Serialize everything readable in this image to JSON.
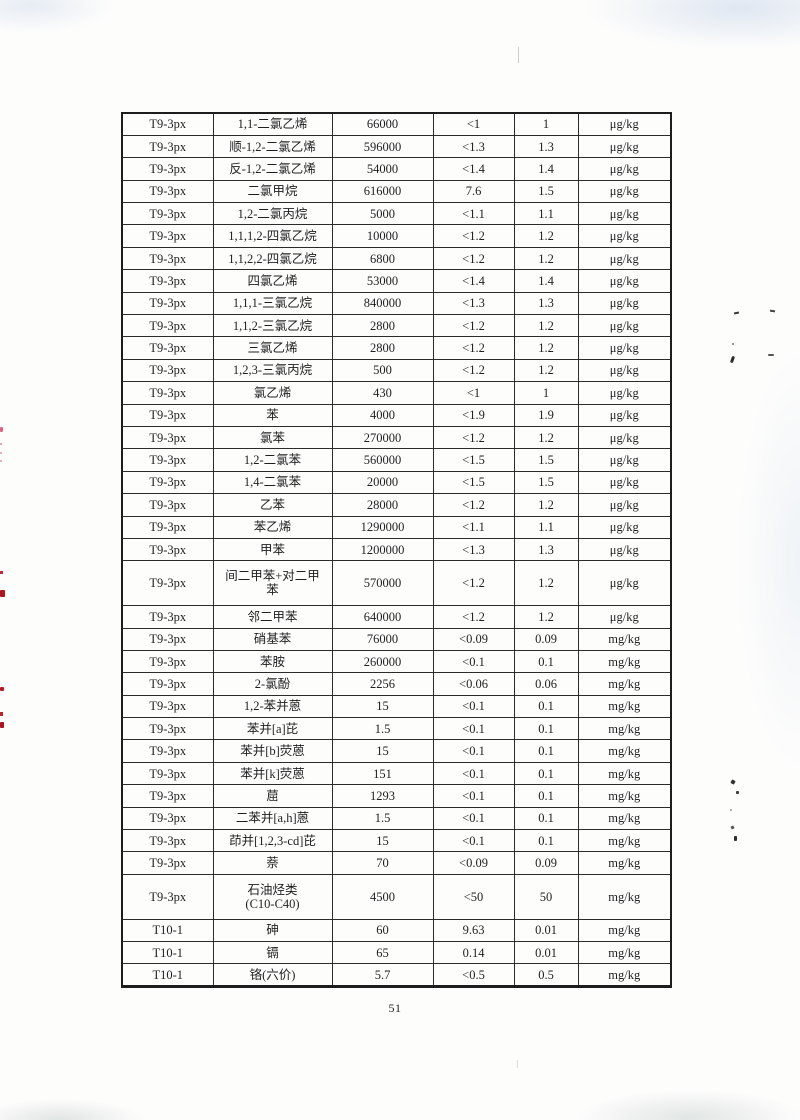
{
  "page": {
    "number": "51"
  },
  "table": {
    "description_columns": [
      "sample-id",
      "analyte",
      "screening-value",
      "result",
      "detection-limit",
      "unit"
    ],
    "rows": [
      {
        "cells": [
          "T9-3px",
          "1,1-二氯乙烯",
          "66000",
          "<1",
          "1",
          "μg/kg"
        ]
      },
      {
        "cells": [
          "T9-3px",
          "顺-1,2-二氯乙烯",
          "596000",
          "<1.3",
          "1.3",
          "μg/kg"
        ]
      },
      {
        "cells": [
          "T9-3px",
          "反-1,2-二氯乙烯",
          "54000",
          "<1.4",
          "1.4",
          "μg/kg"
        ]
      },
      {
        "cells": [
          "T9-3px",
          "二氯甲烷",
          "616000",
          "7.6",
          "1.5",
          "μg/kg"
        ]
      },
      {
        "cells": [
          "T9-3px",
          "1,2-二氯丙烷",
          "5000",
          "<1.1",
          "1.1",
          "μg/kg"
        ]
      },
      {
        "cells": [
          "T9-3px",
          "1,1,1,2-四氯乙烷",
          "10000",
          "<1.2",
          "1.2",
          "μg/kg"
        ]
      },
      {
        "cells": [
          "T9-3px",
          "1,1,2,2-四氯乙烷",
          "6800",
          "<1.2",
          "1.2",
          "μg/kg"
        ]
      },
      {
        "cells": [
          "T9-3px",
          "四氯乙烯",
          "53000",
          "<1.4",
          "1.4",
          "μg/kg"
        ]
      },
      {
        "cells": [
          "T9-3px",
          "1,1,1-三氯乙烷",
          "840000",
          "<1.3",
          "1.3",
          "μg/kg"
        ]
      },
      {
        "cells": [
          "T9-3px",
          "1,1,2-三氯乙烷",
          "2800",
          "<1.2",
          "1.2",
          "μg/kg"
        ]
      },
      {
        "cells": [
          "T9-3px",
          "三氯乙烯",
          "2800",
          "<1.2",
          "1.2",
          "μg/kg"
        ]
      },
      {
        "cells": [
          "T9-3px",
          "1,2,3-三氯丙烷",
          "500",
          "<1.2",
          "1.2",
          "μg/kg"
        ]
      },
      {
        "cells": [
          "T9-3px",
          "氯乙烯",
          "430",
          "<1",
          "1",
          "μg/kg"
        ]
      },
      {
        "cells": [
          "T9-3px",
          "苯",
          "4000",
          "<1.9",
          "1.9",
          "μg/kg"
        ]
      },
      {
        "cells": [
          "T9-3px",
          "氯苯",
          "270000",
          "<1.2",
          "1.2",
          "μg/kg"
        ]
      },
      {
        "cells": [
          "T9-3px",
          "1,2-二氯苯",
          "560000",
          "<1.5",
          "1.5",
          "μg/kg"
        ]
      },
      {
        "cells": [
          "T9-3px",
          "1,4-二氯苯",
          "20000",
          "<1.5",
          "1.5",
          "μg/kg"
        ]
      },
      {
        "cells": [
          "T9-3px",
          "乙苯",
          "28000",
          "<1.2",
          "1.2",
          "μg/kg"
        ]
      },
      {
        "cells": [
          "T9-3px",
          "苯乙烯",
          "1290000",
          "<1.1",
          "1.1",
          "μg/kg"
        ]
      },
      {
        "cells": [
          "T9-3px",
          "甲苯",
          "1200000",
          "<1.3",
          "1.3",
          "μg/kg"
        ]
      },
      {
        "cells": [
          "T9-3px",
          "间二甲苯+对二甲\n苯",
          "570000",
          "<1.2",
          "1.2",
          "μg/kg"
        ]
      },
      {
        "cells": [
          "T9-3px",
          "邻二甲苯",
          "640000",
          "<1.2",
          "1.2",
          "μg/kg"
        ]
      },
      {
        "cells": [
          "T9-3px",
          "硝基苯",
          "76000",
          "<0.09",
          "0.09",
          "mg/kg"
        ]
      },
      {
        "cells": [
          "T9-3px",
          "苯胺",
          "260000",
          "<0.1",
          "0.1",
          "mg/kg"
        ]
      },
      {
        "cells": [
          "T9-3px",
          "2-氯酚",
          "2256",
          "<0.06",
          "0.06",
          "mg/kg"
        ]
      },
      {
        "cells": [
          "T9-3px",
          "1,2-苯并蒽",
          "15",
          "<0.1",
          "0.1",
          "mg/kg"
        ]
      },
      {
        "cells": [
          "T9-3px",
          "苯并[a]芘",
          "1.5",
          "<0.1",
          "0.1",
          "mg/kg"
        ]
      },
      {
        "cells": [
          "T9-3px",
          "苯并[b]荧蒽",
          "15",
          "<0.1",
          "0.1",
          "mg/kg"
        ]
      },
      {
        "cells": [
          "T9-3px",
          "苯并[k]荧蒽",
          "151",
          "<0.1",
          "0.1",
          "mg/kg"
        ]
      },
      {
        "cells": [
          "T9-3px",
          "䓛",
          "1293",
          "<0.1",
          "0.1",
          "mg/kg"
        ]
      },
      {
        "cells": [
          "T9-3px",
          "二苯并[a,h]蒽",
          "1.5",
          "<0.1",
          "0.1",
          "mg/kg"
        ]
      },
      {
        "cells": [
          "T9-3px",
          "茚并[1,2,3-cd]芘",
          "15",
          "<0.1",
          "0.1",
          "mg/kg"
        ]
      },
      {
        "cells": [
          "T9-3px",
          "萘",
          "70",
          "<0.09",
          "0.09",
          "mg/kg"
        ]
      },
      {
        "cells": [
          "T9-3px",
          "石油烃类\n(C10-C40)",
          "4500",
          "<50",
          "50",
          "mg/kg"
        ]
      },
      {
        "cells": [
          "T10-1",
          "砷",
          "60",
          "9.63",
          "0.01",
          "mg/kg"
        ]
      },
      {
        "cells": [
          "T10-1",
          "镉",
          "65",
          "0.14",
          "0.01",
          "mg/kg"
        ]
      },
      {
        "cells": [
          "T10-1",
          "铬(六价)",
          "5.7",
          "<0.5",
          "0.5",
          "mg/kg"
        ]
      }
    ]
  }
}
